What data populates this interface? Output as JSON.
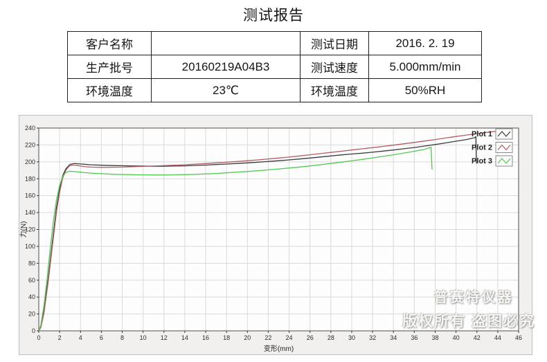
{
  "title": "测试报告",
  "info_table": {
    "rows": [
      [
        "客户名称",
        "",
        "测试日期",
        "2016. 2. 19"
      ],
      [
        "生产批号",
        "20160219A04B3",
        "测试速度",
        "5.000mm/min"
      ],
      [
        "环境温度",
        "23℃",
        "环境温度",
        "50%RH"
      ]
    ]
  },
  "chart_data": {
    "type": "line",
    "title": "",
    "xlabel": "变形(mm)",
    "ylabel": "力(N)",
    "xlim": [
      0,
      46
    ],
    "ylim": [
      0,
      240
    ],
    "xtick_step": 2,
    "ytick_step": 20,
    "grid": true,
    "legend": {
      "position": "top-right",
      "entries": [
        "Plot 1",
        "Plot 2",
        "Plot 3"
      ]
    },
    "watermark": [
      "普赛特仪器",
      "版权所有 盗图必究"
    ],
    "colors": {
      "grid": "#d9d9d9",
      "plot_bg": "#fdfdfd",
      "panel_bg": "#f1f0ee",
      "border": "#6a6a6a",
      "tick_text": "#2b2b2b"
    },
    "series": [
      {
        "name": "Plot 1",
        "color": "#3b3b3b",
        "points": [
          [
            0,
            0
          ],
          [
            0.2,
            5
          ],
          [
            0.5,
            24
          ],
          [
            0.9,
            62
          ],
          [
            1.3,
            105
          ],
          [
            1.7,
            146
          ],
          [
            2,
            168
          ],
          [
            2.3,
            184
          ],
          [
            2.6,
            192
          ],
          [
            3,
            197
          ],
          [
            3.4,
            198
          ],
          [
            4,
            197.5
          ],
          [
            5,
            196.5
          ],
          [
            6,
            196
          ],
          [
            7,
            195.6
          ],
          [
            8,
            195.4
          ],
          [
            9,
            195.1
          ],
          [
            10,
            195
          ],
          [
            11,
            194.8
          ],
          [
            12,
            194.8
          ],
          [
            13,
            195
          ],
          [
            14,
            195.3
          ],
          [
            15,
            195.8
          ],
          [
            16,
            196.2
          ],
          [
            17,
            196.8
          ],
          [
            18,
            197.4
          ],
          [
            19,
            198.1
          ],
          [
            20,
            198.8
          ],
          [
            21,
            199.6
          ],
          [
            22,
            200.4
          ],
          [
            23,
            201.3
          ],
          [
            24,
            202.3
          ],
          [
            25,
            203.4
          ],
          [
            26,
            204.5
          ],
          [
            27,
            205.8
          ],
          [
            28,
            207
          ],
          [
            29,
            208.2
          ],
          [
            30,
            209.3
          ],
          [
            31,
            210.3
          ],
          [
            32,
            211.4
          ],
          [
            33,
            212.7
          ],
          [
            34,
            214
          ],
          [
            35,
            215.5
          ],
          [
            36,
            217
          ],
          [
            37,
            218.7
          ],
          [
            38,
            220.5
          ],
          [
            39,
            222.4
          ],
          [
            40,
            224.4
          ],
          [
            41,
            226.4
          ],
          [
            41.8,
            228.6
          ],
          [
            41.9,
            230
          ],
          [
            41.95,
            198
          ]
        ]
      },
      {
        "name": "Plot 2",
        "color": "#b25d63",
        "points": [
          [
            0,
            0
          ],
          [
            0.2,
            4
          ],
          [
            0.5,
            21
          ],
          [
            0.9,
            58
          ],
          [
            1.3,
            100
          ],
          [
            1.7,
            141
          ],
          [
            2,
            164
          ],
          [
            2.3,
            181
          ],
          [
            2.6,
            190
          ],
          [
            2.9,
            194.8
          ],
          [
            3.2,
            196.2
          ],
          [
            3.6,
            195.8
          ],
          [
            4,
            195
          ],
          [
            4.5,
            194.2
          ],
          [
            5,
            193.8
          ],
          [
            6,
            193.5
          ],
          [
            7,
            193.6
          ],
          [
            8,
            193.8
          ],
          [
            9,
            194.2
          ],
          [
            10,
            194.6
          ],
          [
            11,
            195
          ],
          [
            12,
            195.5
          ],
          [
            13,
            196
          ],
          [
            14,
            196.6
          ],
          [
            15,
            197.3
          ],
          [
            16,
            198
          ],
          [
            17,
            198.8
          ],
          [
            18,
            199.6
          ],
          [
            19,
            200.4
          ],
          [
            20,
            201.3
          ],
          [
            21,
            202.3
          ],
          [
            22,
            203.4
          ],
          [
            23,
            204.5
          ],
          [
            24,
            205.7
          ],
          [
            25,
            207
          ],
          [
            26,
            208.4
          ],
          [
            27,
            209.8
          ],
          [
            28,
            211.2
          ],
          [
            29,
            212.6
          ],
          [
            30,
            214
          ],
          [
            31,
            215.4
          ],
          [
            32,
            216.8
          ],
          [
            33,
            218.3
          ],
          [
            34,
            219.8
          ],
          [
            35,
            221.4
          ],
          [
            36,
            223
          ],
          [
            37,
            224.7
          ],
          [
            38,
            226.4
          ],
          [
            39,
            228.2
          ],
          [
            40,
            230
          ],
          [
            41,
            231.7
          ],
          [
            42,
            233.4
          ],
          [
            43,
            234.9
          ],
          [
            44,
            236.3
          ],
          [
            44.7,
            237.2
          ],
          [
            45.2,
            238
          ]
        ]
      },
      {
        "name": "Plot 3",
        "color": "#4fc94f",
        "points": [
          [
            0,
            0
          ],
          [
            0.2,
            7
          ],
          [
            0.5,
            30
          ],
          [
            0.8,
            62
          ],
          [
            1.1,
            98
          ],
          [
            1.4,
            130
          ],
          [
            1.7,
            155
          ],
          [
            2,
            172
          ],
          [
            2.3,
            183
          ],
          [
            2.6,
            187.5
          ],
          [
            3,
            189
          ],
          [
            3.5,
            188.4
          ],
          [
            4,
            187.8
          ],
          [
            4.5,
            187.2
          ],
          [
            5,
            186.7
          ],
          [
            6,
            186
          ],
          [
            7,
            185.4
          ],
          [
            8,
            185
          ],
          [
            9,
            184.8
          ],
          [
            10,
            184.6
          ],
          [
            11,
            184.5
          ],
          [
            12,
            184.5
          ],
          [
            13,
            184.6
          ],
          [
            14,
            184.9
          ],
          [
            15,
            185.2
          ],
          [
            16,
            185.7
          ],
          [
            17,
            186.3
          ],
          [
            18,
            187
          ],
          [
            19,
            187.8
          ],
          [
            20,
            188.6
          ],
          [
            21,
            189.5
          ],
          [
            22,
            190.5
          ],
          [
            23,
            191.6
          ],
          [
            24,
            192.7
          ],
          [
            25,
            193.9
          ],
          [
            26,
            195.2
          ],
          [
            27,
            196.6
          ],
          [
            28,
            198.1
          ],
          [
            29,
            199.6
          ],
          [
            30,
            201.2
          ],
          [
            31,
            202.9
          ],
          [
            32,
            204.7
          ],
          [
            33,
            206.5
          ],
          [
            34,
            208.4
          ],
          [
            35,
            210.4
          ],
          [
            36,
            212.5
          ],
          [
            37,
            214.9
          ],
          [
            37.6,
            217.2
          ],
          [
            37.7,
            191
          ]
        ]
      }
    ]
  }
}
